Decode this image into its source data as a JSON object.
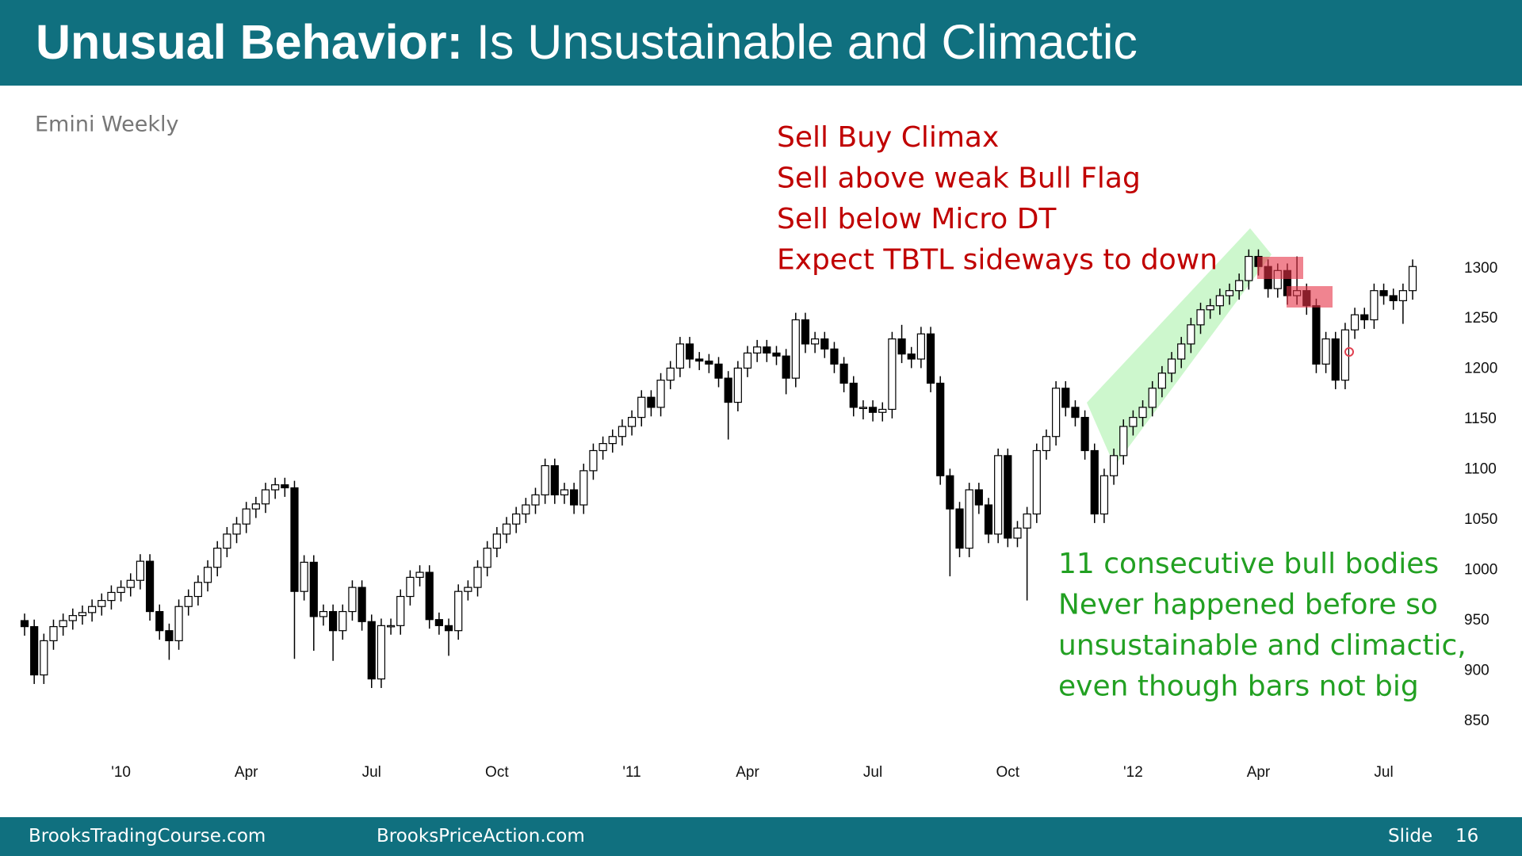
{
  "header": {
    "title_bold": "Unusual Behavior:",
    "title_rest": "Is Unsustainable and Climactic"
  },
  "chart_data": {
    "type": "candlestick",
    "subtitle": "Emini Weekly",
    "categories": [
      null,
      null,
      null,
      null,
      null,
      null,
      null,
      null,
      null,
      null,
      "'10",
      null,
      null,
      null,
      null,
      null,
      null,
      null,
      null,
      null,
      null,
      null,
      null,
      "Apr",
      null,
      null,
      null,
      null,
      null,
      null,
      null,
      null,
      null,
      null,
      null,
      null,
      "Jul",
      null,
      null,
      null,
      null,
      null,
      null,
      null,
      null,
      null,
      null,
      null,
      null,
      "Oct",
      null,
      null,
      null,
      null,
      null,
      null,
      null,
      null,
      null,
      null,
      null,
      null,
      null,
      "'11",
      null,
      null,
      null,
      null,
      null,
      null,
      null,
      null,
      null,
      null,
      null,
      "Apr",
      null,
      null,
      null,
      null,
      null,
      null,
      null,
      null,
      null,
      null,
      null,
      null,
      "Jul",
      null,
      null,
      null,
      null,
      null,
      null,
      null,
      null,
      null,
      null,
      null,
      null,
      null,
      "Oct",
      null,
      null,
      null,
      null,
      null,
      null,
      null,
      null,
      null,
      null,
      null,
      null,
      "'12",
      null,
      null,
      null,
      null,
      null,
      null,
      null,
      null,
      null,
      null,
      null,
      null,
      "Apr",
      null,
      null,
      null,
      null,
      null,
      null,
      null,
      null,
      null,
      null,
      null,
      null,
      "Jul",
      null,
      null,
      null
    ],
    "open": [
      950,
      944,
      896,
      930,
      944,
      950,
      955,
      958,
      964,
      970,
      978,
      983,
      990,
      1009,
      959,
      940,
      930,
      964,
      974,
      988,
      1003,
      1022,
      1036,
      1046,
      1061,
      1066,
      1080,
      1085,
      1082,
      979,
      1008,
      954,
      959,
      940,
      959,
      983,
      949,
      892,
      945,
      945,
      974,
      993,
      998,
      951,
      945,
      940,
      979,
      983,
      1003,
      1022,
      1036,
      1046,
      1056,
      1065,
      1075,
      1104,
      1075,
      1080,
      1065,
      1099,
      1119,
      1126,
      1133,
      1143,
      1152,
      1172,
      1162,
      1189,
      1201,
      1225,
      1210,
      1208,
      1205,
      1191,
      1167,
      1201,
      1216,
      1222,
      1216,
      1213,
      1191,
      1249,
      1225,
      1230,
      1220,
      1205,
      1186,
      1162,
      1162,
      1157,
      1160,
      1230,
      1215,
      1210,
      1235,
      1186,
      1094,
      1061,
      1022,
      1080,
      1065,
      1036,
      1114,
      1032,
      1042,
      1056,
      1119,
      1133,
      1181,
      1162,
      1152,
      1119,
      1056,
      1094,
      1114,
      1143,
      1152,
      1162,
      1181,
      1196,
      1210,
      1225,
      1244,
      1259,
      1263,
      1273,
      1278,
      1288,
      1312,
      1302,
      1280,
      1298,
      1273,
      1278,
      1263,
      1205,
      1230,
      1189,
      1239,
      1254,
      1249,
      1278,
      1273,
      1268,
      1278
    ],
    "high": [
      957,
      951,
      937,
      951,
      957,
      962,
      965,
      971,
      977,
      985,
      990,
      997,
      1016,
      1016,
      966,
      947,
      971,
      981,
      995,
      1010,
      1029,
      1043,
      1053,
      1068,
      1073,
      1087,
      1092,
      1092,
      1089,
      1015,
      1015,
      966,
      966,
      966,
      990,
      990,
      956,
      952,
      952,
      981,
      1000,
      1005,
      1005,
      958,
      952,
      986,
      990,
      1010,
      1029,
      1043,
      1053,
      1063,
      1072,
      1082,
      1111,
      1111,
      1087,
      1087,
      1106,
      1126,
      1133,
      1140,
      1150,
      1159,
      1179,
      1179,
      1196,
      1208,
      1232,
      1232,
      1217,
      1215,
      1212,
      1198,
      1208,
      1223,
      1229,
      1229,
      1223,
      1220,
      1256,
      1256,
      1237,
      1237,
      1227,
      1212,
      1193,
      1169,
      1169,
      1167,
      1237,
      1244,
      1222,
      1242,
      1242,
      1193,
      1101,
      1068,
      1087,
      1087,
      1072,
      1121,
      1121,
      1049,
      1063,
      1126,
      1140,
      1188,
      1188,
      1169,
      1159,
      1126,
      1101,
      1121,
      1150,
      1159,
      1169,
      1188,
      1203,
      1217,
      1232,
      1251,
      1266,
      1270,
      1280,
      1285,
      1295,
      1319,
      1319,
      1309,
      1305,
      1305,
      1312,
      1285,
      1270,
      1237,
      1237,
      1246,
      1261,
      1261,
      1285,
      1285,
      1280,
      1285,
      1309
    ],
    "low": [
      935,
      887,
      887,
      921,
      935,
      941,
      946,
      949,
      955,
      961,
      969,
      974,
      981,
      950,
      931,
      911,
      921,
      955,
      965,
      979,
      994,
      1013,
      1027,
      1037,
      1052,
      1057,
      1071,
      1073,
      912,
      970,
      920,
      945,
      910,
      931,
      950,
      940,
      883,
      883,
      936,
      936,
      965,
      984,
      942,
      936,
      915,
      931,
      970,
      974,
      994,
      1013,
      1027,
      1037,
      1047,
      1056,
      1066,
      1066,
      1066,
      1056,
      1056,
      1090,
      1110,
      1117,
      1124,
      1134,
      1143,
      1153,
      1153,
      1180,
      1192,
      1201,
      1199,
      1196,
      1182,
      1130,
      1158,
      1192,
      1207,
      1207,
      1204,
      1175,
      1182,
      1216,
      1216,
      1211,
      1196,
      1177,
      1153,
      1150,
      1148,
      1148,
      1151,
      1206,
      1201,
      1201,
      1177,
      1085,
      994,
      1013,
      1013,
      1056,
      1027,
      1027,
      1023,
      1023,
      970,
      1047,
      1110,
      1124,
      1153,
      1143,
      1110,
      1047,
      1047,
      1085,
      1105,
      1134,
      1143,
      1153,
      1172,
      1187,
      1201,
      1216,
      1235,
      1250,
      1254,
      1264,
      1269,
      1279,
      1293,
      1271,
      1271,
      1264,
      1264,
      1254,
      1196,
      1196,
      1180,
      1180,
      1230,
      1240,
      1240,
      1264,
      1259,
      1245,
      1269
    ],
    "close": [
      944,
      896,
      930,
      944,
      950,
      955,
      958,
      964,
      970,
      978,
      983,
      990,
      1009,
      959,
      940,
      930,
      964,
      974,
      988,
      1003,
      1022,
      1036,
      1046,
      1061,
      1066,
      1080,
      1085,
      1082,
      979,
      1008,
      954,
      959,
      940,
      959,
      983,
      949,
      892,
      945,
      945,
      974,
      993,
      998,
      951,
      945,
      940,
      979,
      983,
      1003,
      1022,
      1036,
      1046,
      1056,
      1065,
      1075,
      1104,
      1075,
      1080,
      1065,
      1099,
      1119,
      1126,
      1133,
      1143,
      1152,
      1172,
      1162,
      1189,
      1201,
      1225,
      1210,
      1208,
      1205,
      1191,
      1167,
      1201,
      1216,
      1222,
      1216,
      1213,
      1191,
      1249,
      1225,
      1230,
      1220,
      1205,
      1186,
      1162,
      1162,
      1157,
      1160,
      1230,
      1215,
      1210,
      1235,
      1186,
      1094,
      1061,
      1022,
      1080,
      1065,
      1036,
      1114,
      1032,
      1042,
      1056,
      1119,
      1133,
      1181,
      1162,
      1152,
      1119,
      1056,
      1094,
      1114,
      1143,
      1152,
      1162,
      1181,
      1196,
      1210,
      1225,
      1244,
      1259,
      1263,
      1273,
      1278,
      1288,
      1312,
      1302,
      1280,
      1298,
      1273,
      1278,
      1263,
      1205,
      1230,
      1189,
      1239,
      1254,
      1249,
      1278,
      1273,
      1268,
      1278,
      1302
    ],
    "up_color": "#ffffff",
    "down_color": "#000000",
    "ylim": [
      820,
      1340
    ],
    "yticks": [
      850,
      900,
      950,
      1000,
      1050,
      1100,
      1150,
      1200,
      1250,
      1300
    ],
    "annotations": [
      {
        "color": "#c00000",
        "lines": [
          "Sell Buy Climax",
          "Sell above weak Bull Flag",
          "Sell below Micro DT",
          "Expect TBTL sideways to down"
        ]
      },
      {
        "color": "#22a022",
        "lines": [
          "11 consecutive bull bodies",
          "Never happened before so",
          "unsustainable and climactic,",
          "even though bars not big"
        ]
      }
    ]
  },
  "footer": {
    "left": "BrooksTradingCourse.com",
    "center": "BrooksPriceAction.com",
    "slide_label": "Slide",
    "slide_number": "16"
  }
}
